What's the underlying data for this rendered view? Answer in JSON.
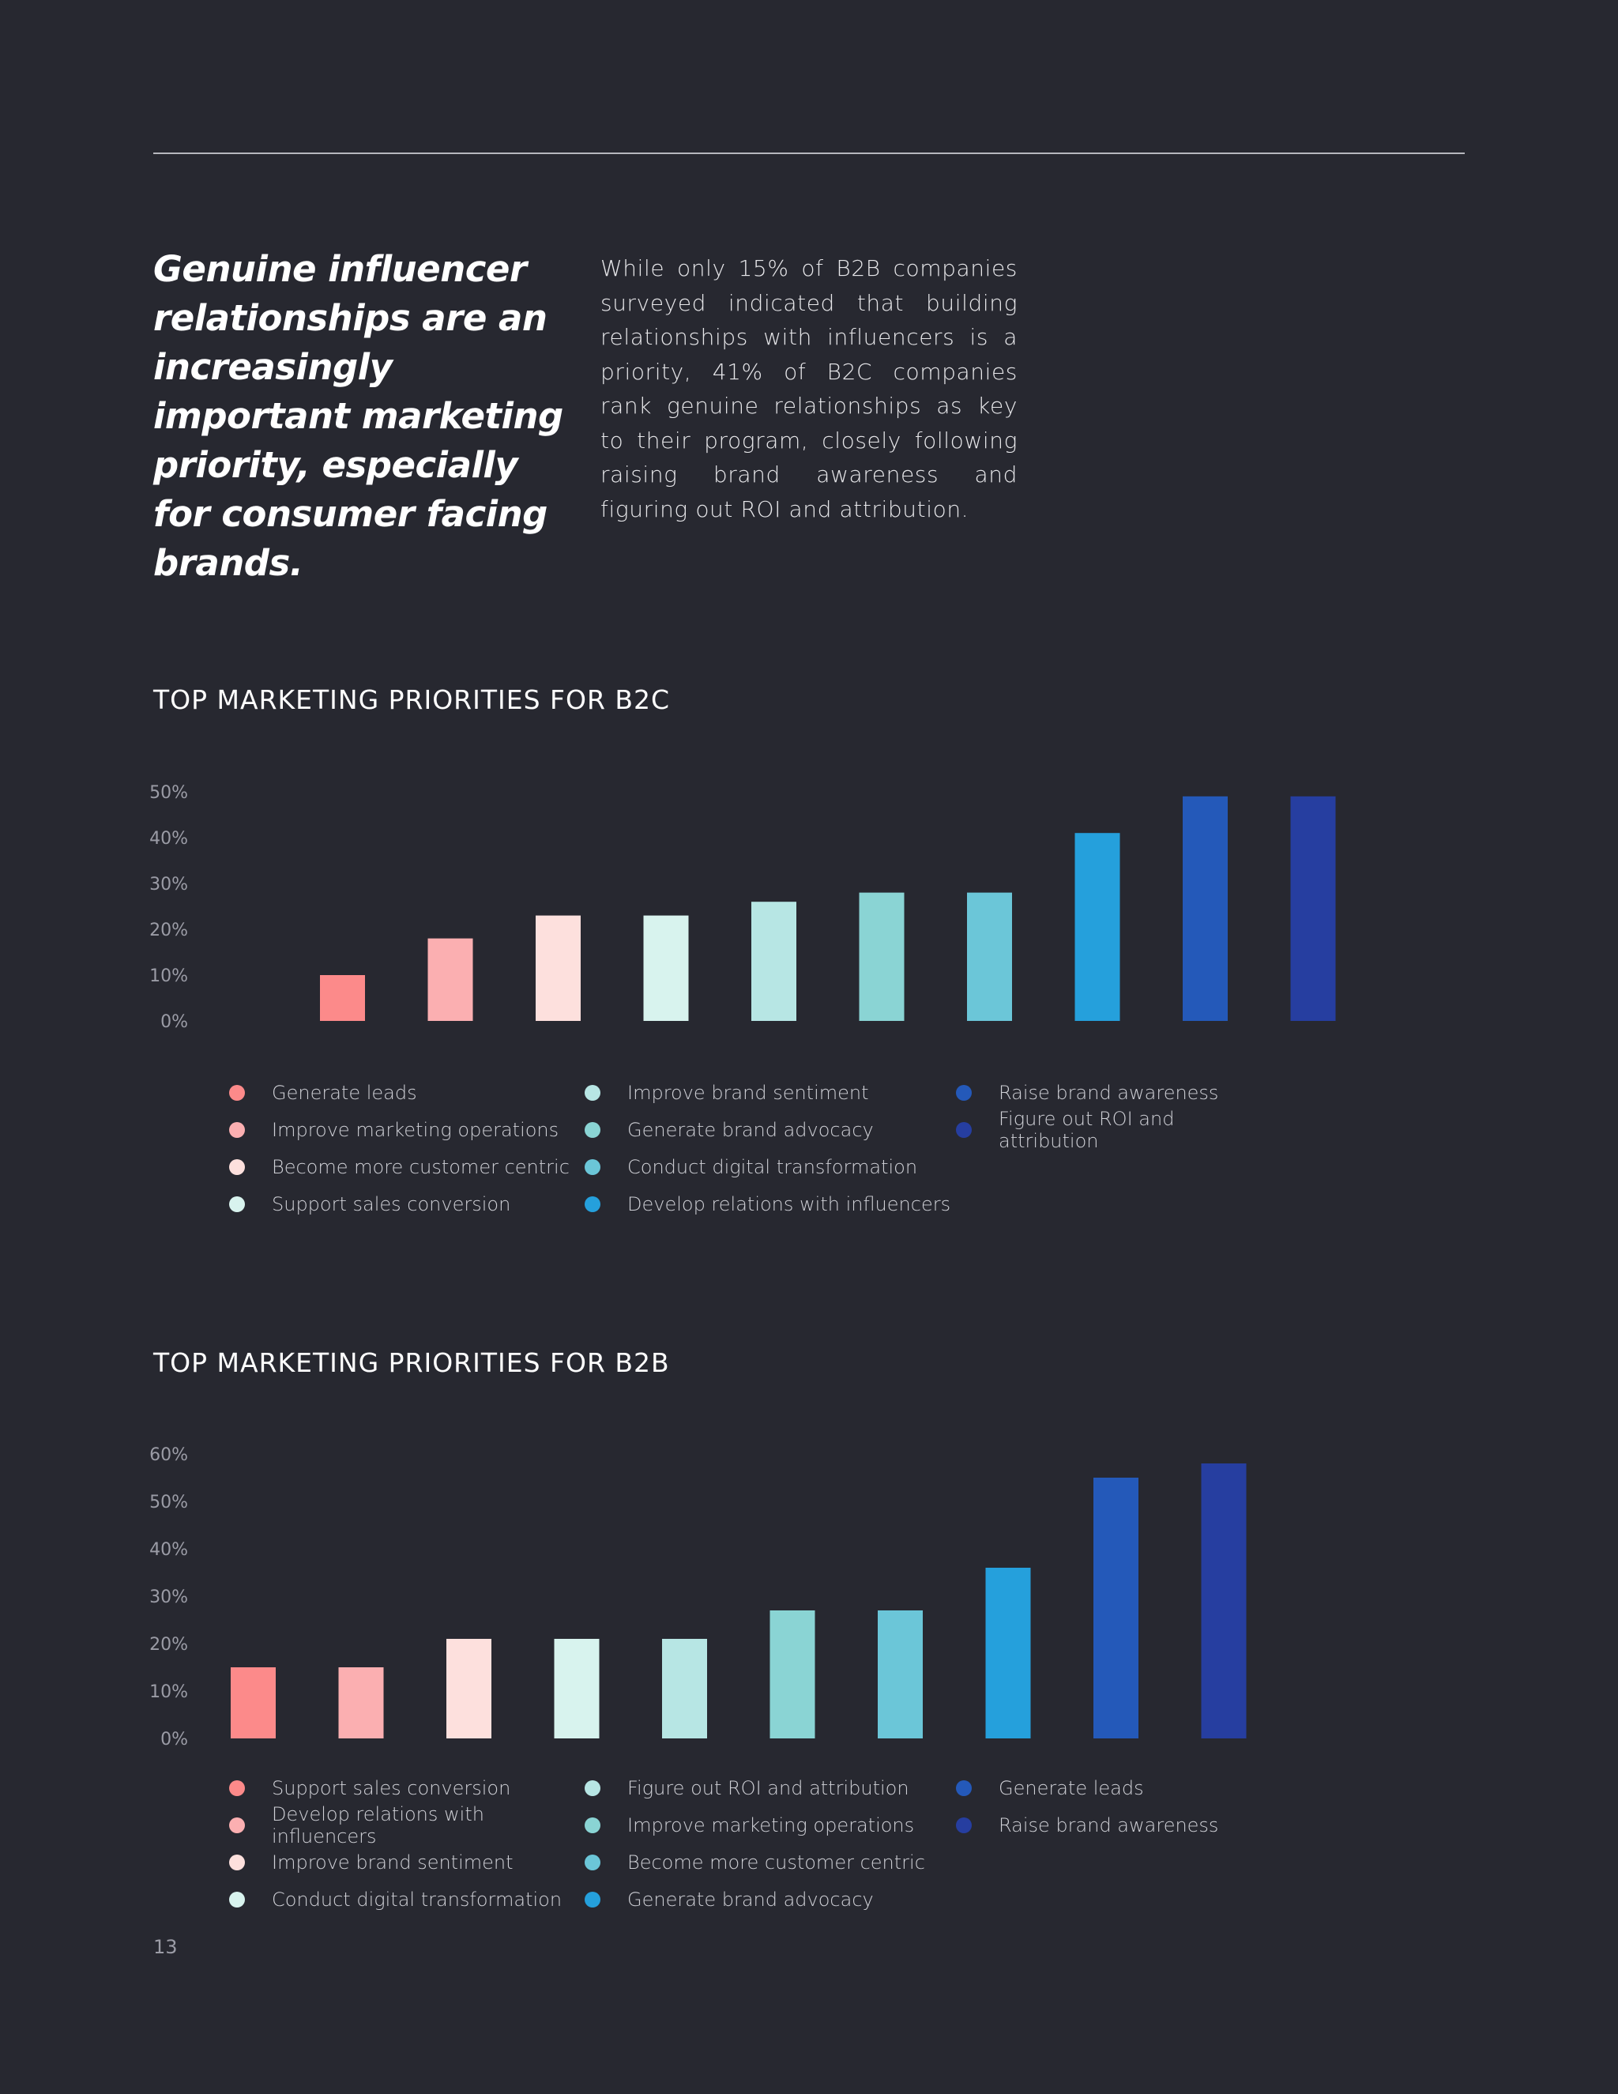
{
  "quote": "Genuine influencer relationships are  an increasingly important marketing priority, especially for consumer facing brands.",
  "body": "While only 15% of B2B companies surveyed indicated that building relationships with influencers is a priority, 41% of B2C companies rank genuine relationships as key to their program, closely following raising brand awareness and figuring out ROI and attribution.",
  "page_number": "13",
  "chart_data": [
    {
      "type": "bar",
      "title": "TOP MARKETING PRIORITIES FOR B2C",
      "categories": [
        "Generate leads",
        "Improve marketing operations",
        "Become more customer centric",
        "Support sales conversion",
        "Improve brand sentiment",
        "Generate brand advocacy",
        "Conduct digital transformation",
        "Develop relations with influencers",
        "Raise brand awareness",
        "Figure out ROI and attribution"
      ],
      "values": [
        10,
        18,
        23,
        23,
        26,
        28,
        28,
        41,
        49,
        49
      ],
      "colors": [
        "#fc8a8a",
        "#fbafb1",
        "#fde0dd",
        "#d8f3ee",
        "#b7e6e4",
        "#8ad4d4",
        "#6bc6d8",
        "#25a0dc",
        "#2459b9",
        "#263ea0"
      ],
      "yticks": [
        "0%",
        "10%",
        "20%",
        "30%",
        "40%",
        "50%"
      ],
      "ylim": [
        0,
        50
      ],
      "legend_position": "bottom",
      "grid": false
    },
    {
      "type": "bar",
      "title": "TOP MARKETING PRIORITIES FOR B2B",
      "categories": [
        "Support sales conversion",
        "Develop relations with influencers",
        "Improve brand sentiment",
        "Conduct digital transformation",
        "Figure out ROI and attribution",
        "Improve marketing operations",
        "Become more customer centric",
        "Generate brand advocacy",
        "Generate leads",
        "Raise brand awareness"
      ],
      "values": [
        15,
        15,
        21,
        21,
        21,
        27,
        27,
        36,
        55,
        58
      ],
      "colors": [
        "#fc8a8a",
        "#fbafb1",
        "#fde0dd",
        "#d8f3ee",
        "#b7e6e4",
        "#8ad4d4",
        "#6bc6d8",
        "#25a0dc",
        "#2459b9",
        "#263ea0"
      ],
      "yticks": [
        "0%",
        "10%",
        "20%",
        "30%",
        "40%",
        "50%",
        "60%"
      ],
      "ylim": [
        0,
        60
      ],
      "legend_position": "bottom",
      "grid": false
    }
  ]
}
